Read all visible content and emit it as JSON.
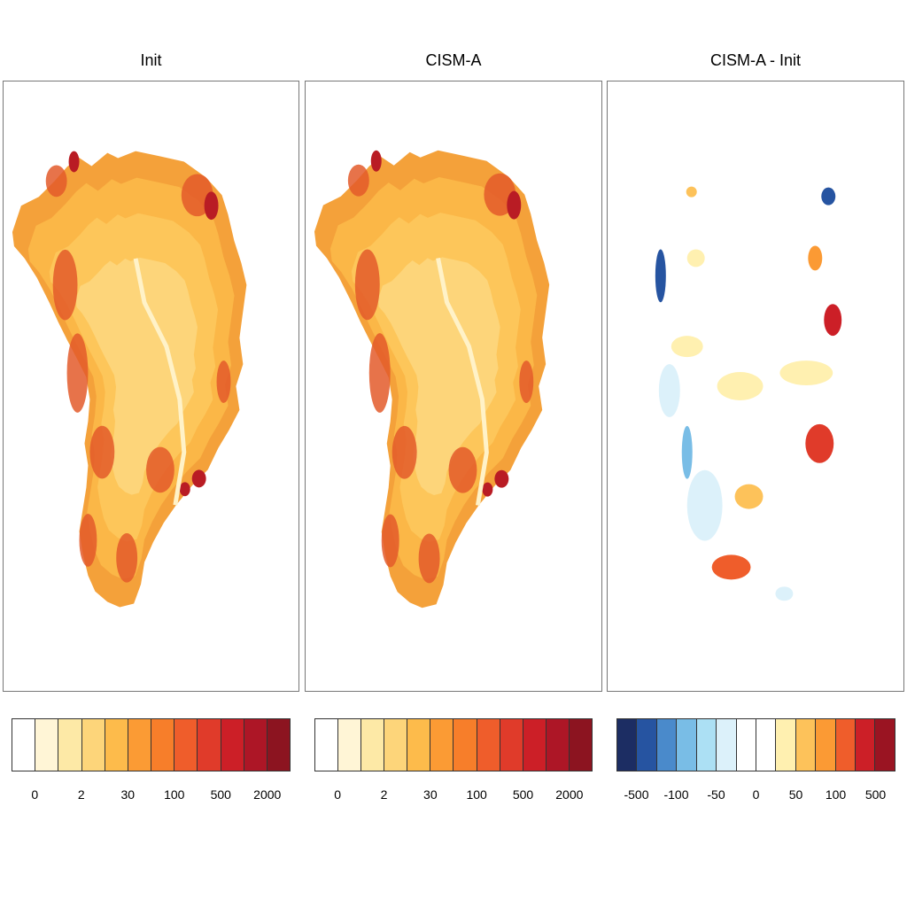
{
  "panels": [
    {
      "title": "Init"
    },
    {
      "title": "CISM-A"
    },
    {
      "title": "CISM-A - Init"
    }
  ],
  "colorbars": [
    {
      "colors": [
        "#ffffff",
        "#fff5d6",
        "#fde9a6",
        "#fdd57a",
        "#fdbb4b",
        "#fb9b34",
        "#f77e2a",
        "#ef5d2b",
        "#e03b2a",
        "#cc1f27",
        "#ad1626",
        "#8c1420"
      ],
      "ticks": [
        "0",
        "2",
        "30",
        "100",
        "500",
        "2000"
      ]
    },
    {
      "colors": [
        "#ffffff",
        "#fff5d6",
        "#fde9a6",
        "#fdd57a",
        "#fdbb4b",
        "#fb9b34",
        "#f77e2a",
        "#ef5d2b",
        "#e03b2a",
        "#cc1f27",
        "#ad1626",
        "#8c1420"
      ],
      "ticks": [
        "0",
        "2",
        "30",
        "100",
        "500",
        "2000"
      ]
    },
    {
      "colors": [
        "#1c2d63",
        "#2654a1",
        "#4a8acb",
        "#79bde6",
        "#ace0f4",
        "#dcf1fa",
        "#ffffff",
        "#ffffff",
        "#fff0b0",
        "#fdc25a",
        "#fb9a34",
        "#ef5d2b",
        "#cc1f27",
        "#9a1422"
      ],
      "ticks": [
        "-500",
        "-100",
        "-50",
        "0",
        "50",
        "100",
        "500"
      ]
    }
  ]
}
